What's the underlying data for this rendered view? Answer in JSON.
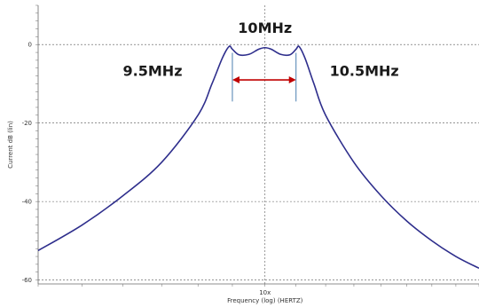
{
  "chart_data": {
    "type": "line",
    "xlabel": "Frequency (log) (HERTZ)",
    "ylabel": "Current dB (lin)",
    "x_tick_labels": [
      "10x"
    ],
    "y_ticks": [
      0,
      -20,
      -40,
      -60
    ],
    "ylim": [
      -61,
      10
    ],
    "xlim": [
      7,
      14
    ],
    "x_scale": "log",
    "grid": true,
    "grid_style": "dashed",
    "colors": {
      "line": "#2e2e8c",
      "arrow": "#c00000",
      "marker": "#4a7fb0"
    },
    "series": [
      {
        "x": [
          7.0,
          7.5,
          8.0,
          8.5,
          9.0,
          9.2,
          9.35,
          9.45,
          9.5,
          9.6,
          9.75,
          9.9,
          10.0,
          10.1,
          10.25,
          10.4,
          10.5,
          10.55,
          10.65,
          10.8,
          11.0,
          11.5,
          12.0,
          12.5,
          13.0,
          13.5,
          14.0
        ],
        "values": [
          -52.5,
          -46,
          -38.5,
          -30,
          -18,
          -10,
          -3.5,
          -0.5,
          -1.2,
          -2.6,
          -2.5,
          -1.2,
          -0.8,
          -1.2,
          -2.5,
          -2.6,
          -1.2,
          -0.5,
          -3.5,
          -10,
          -18,
          -30,
          -38.5,
          -45,
          -50,
          -54,
          -57
        ]
      }
    ],
    "annotations": [
      {
        "text": "10MHz",
        "x": 10.0,
        "y": 3
      },
      {
        "text": "9.5MHz",
        "x": 8.38,
        "y": -8
      },
      {
        "text": "10.5MHz",
        "x": 11.69,
        "y": -8
      }
    ],
    "markers": [
      9.5,
      10.5
    ],
    "arrow": {
      "from": 9.5,
      "to": 10.5,
      "y": -9
    }
  }
}
